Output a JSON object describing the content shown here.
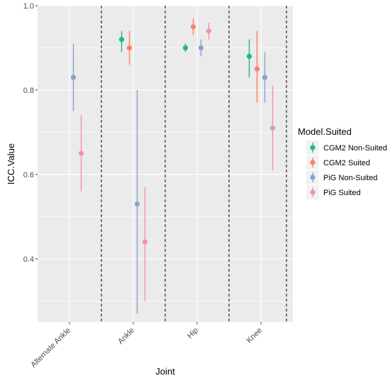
{
  "chart_data": {
    "type": "scatter",
    "xlabel": "Joint",
    "ylabel": "ICC.Value",
    "categories": [
      "Alternate Ankle",
      "Ankle",
      "Hip",
      "Knee"
    ],
    "ylim": [
      0.25,
      1.0
    ],
    "yticks": [
      "0.4",
      "0.6",
      "0.8",
      "1.0"
    ],
    "ytick_values": [
      0.4,
      0.6,
      0.8,
      1.0
    ],
    "grid": true,
    "legend": {
      "title": "Model.Suited",
      "position": "right"
    },
    "series": [
      {
        "name": "CGM2 Non-Suited",
        "color": "#1fb68f",
        "points": [
          {
            "category": "Ankle",
            "y": 0.92,
            "low": 0.89,
            "high": 0.94
          },
          {
            "category": "Hip",
            "y": 0.9,
            "low": 0.89,
            "high": 0.91
          },
          {
            "category": "Knee",
            "y": 0.88,
            "low": 0.83,
            "high": 0.92
          }
        ]
      },
      {
        "name": "CGM2 Suited",
        "color": "#f8845f",
        "points": [
          {
            "category": "Ankle",
            "y": 0.9,
            "low": 0.86,
            "high": 0.94
          },
          {
            "category": "Hip",
            "y": 0.95,
            "low": 0.93,
            "high": 0.97
          },
          {
            "category": "Knee",
            "y": 0.85,
            "low": 0.77,
            "high": 0.94
          }
        ]
      },
      {
        "name": "PiG Non-Suited",
        "color": "#8da0cb",
        "points": [
          {
            "category": "Alternate Ankle",
            "y": 0.83,
            "low": 0.75,
            "high": 0.91
          },
          {
            "category": "Ankle",
            "y": 0.53,
            "low": 0.27,
            "high": 0.8
          },
          {
            "category": "Hip",
            "y": 0.9,
            "low": 0.88,
            "high": 0.92
          },
          {
            "category": "Knee",
            "y": 0.83,
            "low": 0.77,
            "high": 0.89
          }
        ]
      },
      {
        "name": "PiG Suited",
        "color": "#f28cc0",
        "points": [
          {
            "category": "Alternate Ankle",
            "y": 0.65,
            "low": 0.56,
            "high": 0.74
          },
          {
            "category": "Ankle",
            "y": 0.44,
            "low": 0.3,
            "high": 0.57
          },
          {
            "category": "Hip",
            "y": 0.94,
            "low": 0.92,
            "high": 0.96
          },
          {
            "category": "Knee",
            "y": 0.71,
            "low": 0.61,
            "high": 0.81
          }
        ]
      }
    ]
  }
}
